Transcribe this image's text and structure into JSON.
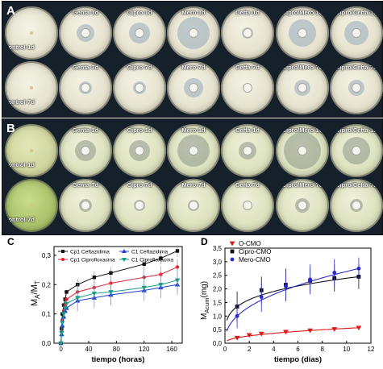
{
  "panels": {
    "a": {
      "label": "A",
      "rows": [
        [
          "Control-1d",
          "Genta-1d",
          "Cipro-1d",
          "Mero-1d",
          "Cefta-1d",
          "Cipro/Mero-1d",
          "Cipro/Cefta-1d"
        ],
        [
          "Control-7d",
          "Genta-7d",
          "Cipro-7d",
          "Mero-7d",
          "Cefta-7d",
          "Cipro/Mero-7d",
          "Cipro/Cefta-7d"
        ]
      ]
    },
    "b": {
      "label": "B",
      "rows": [
        [
          "Control-1d",
          "Genta-1d",
          "Cipro-1d",
          "Mero-1d",
          "Cefta-1d",
          "Cipro/Mero-1d",
          "Cipro/Cefta-1d"
        ],
        [
          "Control-7d",
          "Genta-7d",
          "Cipro-7d",
          "Mero-7d",
          "Cefta-7d",
          "Cipro/Mero-7d",
          "Cipro/Cefta-7d"
        ]
      ]
    },
    "c": {
      "label": "C"
    },
    "d": {
      "label": "D"
    }
  },
  "chart_data": [
    {
      "type": "line",
      "xlabel": "tiempo (horas)",
      "ylabel_main": "M",
      "ylabel_sub1": "A",
      "ylabel_mid": "/M",
      "ylabel_sub2": "T",
      "xlim": [
        -10,
        175
      ],
      "ylim": [
        0,
        0.33
      ],
      "xticks": [
        0,
        40,
        80,
        120,
        160
      ],
      "yticks": [
        0.0,
        0.1,
        0.2,
        0.3
      ],
      "ytick_labels": [
        "0,0",
        "0,1",
        "0,2",
        "0,3"
      ],
      "x": [
        0,
        1,
        2,
        4,
        6,
        8,
        24,
        48,
        72,
        120,
        144,
        168
      ],
      "legend_position": "top",
      "series": [
        {
          "name": "Cp1 Ceftazidima",
          "color": "#111111",
          "marker": "square",
          "values": [
            0.0,
            0.05,
            0.1,
            0.13,
            0.15,
            0.175,
            0.2,
            0.225,
            0.24,
            0.27,
            0.29,
            0.315
          ]
        },
        {
          "name": "Cp1 Ciprofloxacina",
          "color": "#e0202a",
          "marker": "circle",
          "values": [
            0.0,
            0.04,
            0.08,
            0.11,
            0.13,
            0.15,
            0.175,
            0.19,
            0.205,
            0.225,
            0.235,
            0.26
          ]
        },
        {
          "name": "C1 Ceftazidima",
          "color": "#1f3fd0",
          "marker": "triangle-up",
          "values": [
            0.0,
            0.03,
            0.06,
            0.09,
            0.11,
            0.12,
            0.145,
            0.155,
            0.165,
            0.18,
            0.19,
            0.2
          ]
        },
        {
          "name": "C1 Ciprofloxacina",
          "color": "#1a9a8a",
          "marker": "triangle-down",
          "values": [
            0.0,
            0.035,
            0.07,
            0.1,
            0.12,
            0.135,
            0.155,
            0.17,
            0.175,
            0.19,
            0.2,
            0.215
          ]
        }
      ]
    },
    {
      "type": "line",
      "xlabel": "tiempo (dias)",
      "ylabel_main": "M",
      "ylabel_sub1": "Acum",
      "ylabel_mid": "(mg)",
      "xlim": [
        0,
        12
      ],
      "ylim": [
        0,
        3.5
      ],
      "xticks": [
        0,
        2,
        4,
        6,
        8,
        10,
        12
      ],
      "yticks": [
        0.0,
        0.5,
        1.0,
        1.5,
        2.0,
        2.5,
        3.0,
        3.5
      ],
      "ytick_labels": [
        "0,0",
        "0,5",
        "1,0",
        "1,5",
        "2,0",
        "2,5",
        "3,0",
        "3,5"
      ],
      "legend_position": "top-left",
      "series": [
        {
          "name": "O-CMO",
          "color": "#e01818",
          "marker": "triangle-down",
          "x": [
            1,
            2,
            3,
            5,
            7,
            9,
            11
          ],
          "values": [
            0.2,
            0.3,
            0.35,
            0.42,
            0.47,
            0.52,
            0.57
          ]
        },
        {
          "name": "Cipro-CMO",
          "color": "#111111",
          "marker": "square",
          "x": [
            1,
            3,
            5,
            7,
            9,
            11
          ],
          "values": [
            1.35,
            1.95,
            2.15,
            2.3,
            2.4,
            2.45
          ]
        },
        {
          "name": "Mero-CMO",
          "color": "#2a2ad0",
          "marker": "circle",
          "x": [
            1,
            3,
            5,
            7,
            9,
            11
          ],
          "values": [
            1.0,
            1.7,
            2.1,
            2.35,
            2.6,
            2.75
          ]
        }
      ]
    }
  ]
}
